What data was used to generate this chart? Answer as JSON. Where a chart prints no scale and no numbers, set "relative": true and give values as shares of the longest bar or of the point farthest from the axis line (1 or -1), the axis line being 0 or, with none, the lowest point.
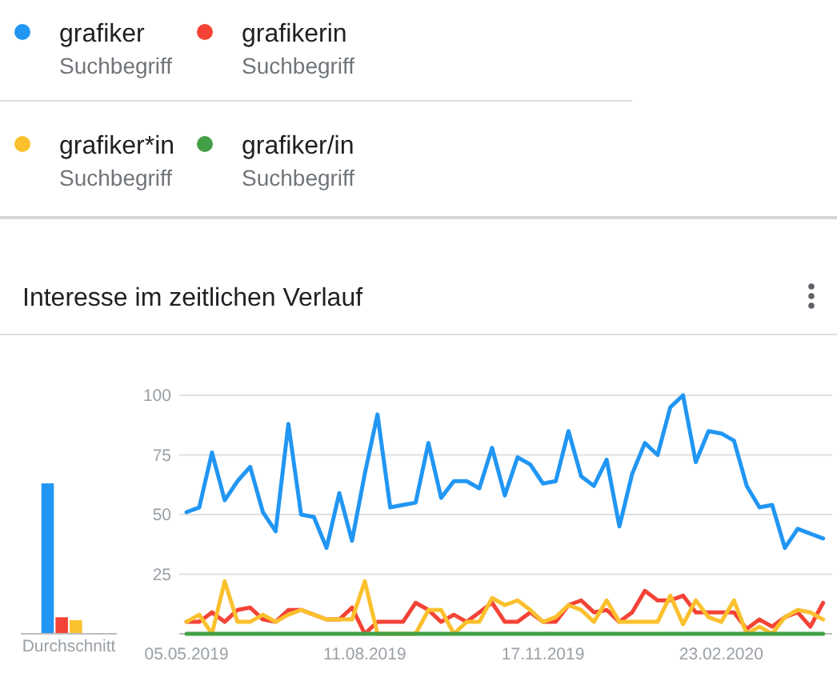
{
  "chart_data": [
    {
      "type": "line",
      "title": "Interesse im zeitlichen Verlauf",
      "x": [
        "2019-05-05",
        "2019-05-12",
        "2019-05-19",
        "2019-05-26",
        "2019-06-02",
        "2019-06-09",
        "2019-06-16",
        "2019-06-23",
        "2019-06-30",
        "2019-07-07",
        "2019-07-14",
        "2019-07-21",
        "2019-07-28",
        "2019-08-04",
        "2019-08-11",
        "2019-08-18",
        "2019-08-25",
        "2019-09-01",
        "2019-09-08",
        "2019-09-15",
        "2019-09-22",
        "2019-09-29",
        "2019-10-06",
        "2019-10-13",
        "2019-10-20",
        "2019-10-27",
        "2019-11-03",
        "2019-11-10",
        "2019-11-17",
        "2019-11-24",
        "2019-12-01",
        "2019-12-08",
        "2019-12-15",
        "2019-12-22",
        "2019-12-29",
        "2020-01-05",
        "2020-01-12",
        "2020-01-19",
        "2020-01-26",
        "2020-02-02",
        "2020-02-09",
        "2020-02-16",
        "2020-02-23",
        "2020-03-01",
        "2020-03-08",
        "2020-03-15",
        "2020-03-22",
        "2020-03-29",
        "2020-04-05",
        "2020-04-12",
        "2020-04-19"
      ],
      "series": [
        {
          "name": "grafiker",
          "color": "#2196f3",
          "values": [
            51,
            53,
            76,
            56,
            64,
            70,
            51,
            43,
            88,
            50,
            49,
            36,
            59,
            39,
            67,
            92,
            53,
            54,
            55,
            80,
            57,
            64,
            64,
            61,
            78,
            58,
            74,
            71,
            63,
            64,
            85,
            66,
            62,
            73,
            45,
            67,
            80,
            75,
            95,
            100,
            72,
            85,
            84,
            81,
            62,
            53,
            54,
            36,
            44,
            42,
            40
          ]
        },
        {
          "name": "grafikerin",
          "color": "#f44336",
          "values": [
            5,
            5,
            9,
            5,
            10,
            11,
            6,
            5,
            10,
            10,
            8,
            6,
            6,
            11,
            0,
            5,
            5,
            5,
            13,
            10,
            5,
            8,
            5,
            9,
            13,
            5,
            5,
            9,
            5,
            5,
            12,
            14,
            9,
            10,
            5,
            9,
            18,
            14,
            14,
            16,
            9,
            9,
            9,
            9,
            2,
            6,
            3,
            7,
            9,
            3,
            13
          ]
        },
        {
          "name": "grafiker*in",
          "color": "#fbc02d",
          "values": [
            5,
            8,
            0,
            22,
            5,
            5,
            8,
            5,
            8,
            10,
            8,
            6,
            6,
            6,
            22,
            0,
            0,
            0,
            0,
            10,
            10,
            0,
            5,
            5,
            15,
            12,
            14,
            10,
            5,
            7,
            12,
            10,
            5,
            14,
            5,
            5,
            5,
            5,
            16,
            4,
            14,
            7,
            5,
            14,
            0,
            3,
            0,
            7,
            10,
            9,
            6
          ]
        },
        {
          "name": "grafiker/in",
          "color": "#43a047",
          "values": [
            0,
            0,
            0,
            0,
            0,
            0,
            0,
            0,
            0,
            0,
            0,
            0,
            0,
            0,
            0,
            0,
            0,
            0,
            0,
            0,
            0,
            0,
            0,
            0,
            0,
            0,
            0,
            0,
            0,
            0,
            0,
            0,
            0,
            0,
            0,
            0,
            0,
            0,
            0,
            0,
            0,
            0,
            0,
            0,
            0,
            0,
            0,
            0,
            0,
            0,
            0
          ]
        }
      ],
      "xlim": [
        "2019-05-01",
        "2020-04-24"
      ],
      "xticks": [
        {
          "value": "2019-05-05",
          "label": "05.05.2019"
        },
        {
          "value": "2019-08-11",
          "label": "11.08.2019"
        },
        {
          "value": "2019-11-17",
          "label": "17.11.2019"
        },
        {
          "value": "2020-02-23",
          "label": "23.02.2020"
        }
      ],
      "ylim": [
        0,
        100
      ],
      "yticks": [
        25,
        50,
        75,
        100
      ],
      "grid": "y",
      "legend": "top",
      "annotations": [
        "Suchbegriff",
        "Suchbegriff",
        "Suchbegriff",
        "Suchbegriff"
      ]
    },
    {
      "type": "bar",
      "categories": [
        "Durchschnitt"
      ],
      "relative": true,
      "series": [
        {
          "color": "#2196f3",
          "values": [
            1
          ]
        },
        {
          "color": "#f44336",
          "values": [
            0.11
          ]
        },
        {
          "color": "#fbc02d",
          "values": [
            0.09
          ]
        },
        {
          "color": "#43a047",
          "values": [
            0
          ]
        }
      ]
    }
  ]
}
